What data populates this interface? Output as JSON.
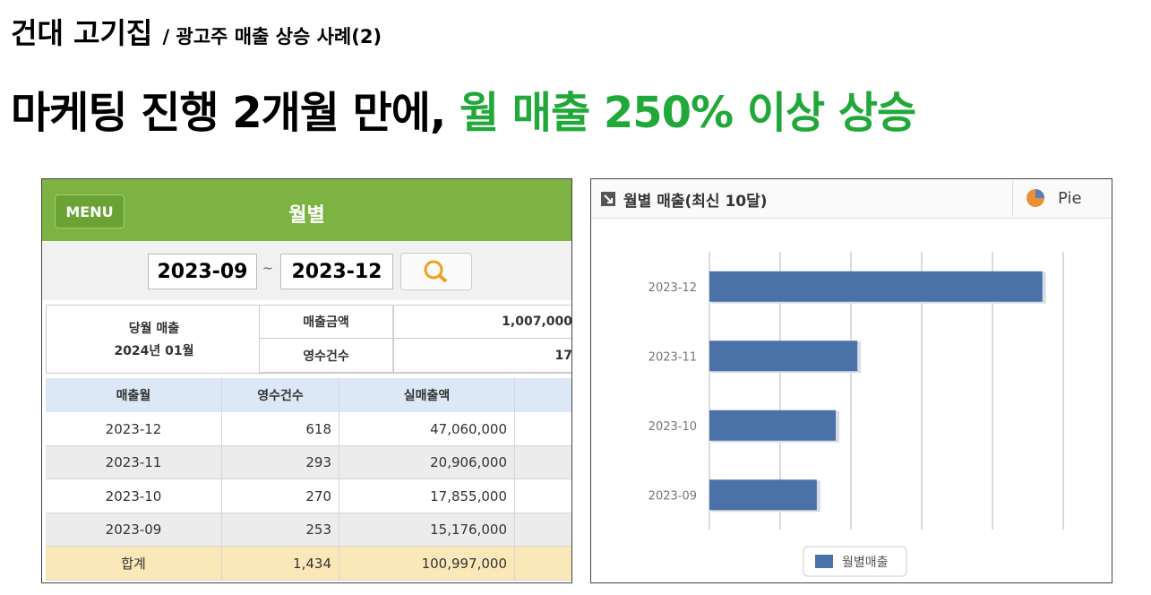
{
  "header": {
    "title": "건대 고기집",
    "subtitle": "/ 광고주 매출 상승 사례(2)"
  },
  "headline": {
    "text": "마케팅 진행 2개월 만에,",
    "highlight": "월 매출 250% 이상 상승"
  },
  "table_panel": {
    "menu": "MENU",
    "title": "월별",
    "date_from": "2023-09",
    "date_sep": "~",
    "date_to": "2023-12",
    "summary": {
      "label": "당월 매출",
      "month": "2024년 01월",
      "rows": [
        [
          "매출금액",
          "1,007,000"
        ],
        [
          "영수건수",
          "17"
        ]
      ]
    },
    "table": {
      "columns": [
        "매출월",
        "영수건수",
        "실매출액"
      ],
      "rows": [
        [
          "2023-12",
          "618",
          "47,060,000"
        ],
        [
          "2023-11",
          "293",
          "20,906,000"
        ],
        [
          "2023-10",
          "270",
          "17,855,000"
        ],
        [
          "2023-09",
          "253",
          "15,176,000"
        ]
      ],
      "total": [
        "합계",
        "1,434",
        "100,997,000"
      ]
    }
  },
  "chart_panel": {
    "title": "월별 매출(최신 10달)",
    "pie_button": "Pie"
  },
  "chart_data": {
    "type": "bar",
    "orientation": "horizontal",
    "categories": [
      "2023-12",
      "2023-11",
      "2023-10",
      "2023-09"
    ],
    "series": [
      {
        "name": "월별매출",
        "color": "#4a72a8",
        "values": [
          47060000,
          20906000,
          17855000,
          15176000
        ]
      }
    ],
    "xlim": [
      0,
      50000000
    ],
    "xticks": [
      0,
      10000000,
      20000000,
      30000000,
      40000000,
      50000000
    ],
    "grid": true
  }
}
